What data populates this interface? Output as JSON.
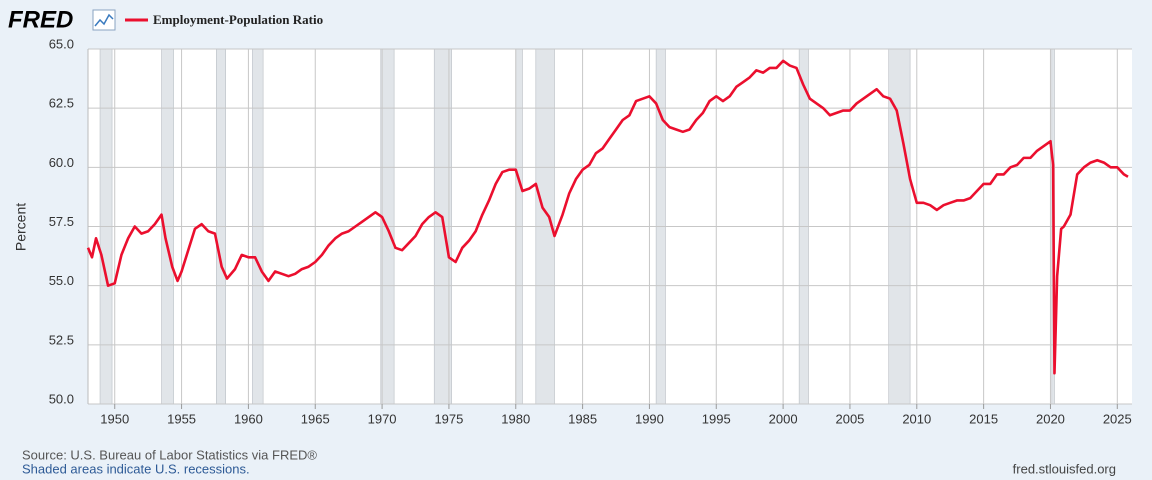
{
  "chart_data": {
    "type": "line",
    "logo": "FRED",
    "ylabel": "Percent",
    "source": "Source: U.S. Bureau of Labor Statistics via FRED®",
    "note": "Shaded areas indicate U.S. recessions.",
    "url": "fred.stlouisfed.org",
    "xlim": [
      1948,
      2026.1
    ],
    "xticks": [
      1950,
      1955,
      1960,
      1965,
      1970,
      1975,
      1980,
      1985,
      1990,
      1995,
      2000,
      2005,
      2010,
      2015,
      2020,
      2025
    ],
    "ylim": [
      50,
      65
    ],
    "yticks": [
      {
        "value": 50,
        "label": "50.0"
      },
      {
        "value": 52.5,
        "label": "52.5"
      },
      {
        "value": 55,
        "label": "55.0"
      },
      {
        "value": 57.5,
        "label": "57.5"
      },
      {
        "value": 60,
        "label": "60.0"
      },
      {
        "value": 62.5,
        "label": "62.5"
      },
      {
        "value": 65,
        "label": "65.0"
      }
    ],
    "grid": true,
    "recession_color": "#e1e5e9",
    "recessions": [
      [
        1948.9,
        1949.8
      ],
      [
        1953.5,
        1954.4
      ],
      [
        1957.6,
        1958.3
      ],
      [
        1960.3,
        1961.1
      ],
      [
        1969.9,
        1970.9
      ],
      [
        1973.9,
        1975.2
      ],
      [
        1980.0,
        1980.5
      ],
      [
        1981.5,
        1982.9
      ],
      [
        1990.5,
        1991.2
      ],
      [
        2001.2,
        2001.9
      ],
      [
        2007.9,
        2009.5
      ],
      [
        2020.1,
        2020.3
      ]
    ],
    "x": [
      1948.0,
      1948.3,
      1948.6,
      1949.0,
      1949.5,
      1950.0,
      1950.5,
      1951.0,
      1951.5,
      1952.0,
      1952.5,
      1953.0,
      1953.5,
      1953.8,
      1954.3,
      1954.7,
      1955.0,
      1955.5,
      1956.0,
      1956.5,
      1957.0,
      1957.5,
      1958.0,
      1958.4,
      1959.0,
      1959.5,
      1960.0,
      1960.5,
      1961.0,
      1961.5,
      1962.0,
      1962.5,
      1963.0,
      1963.5,
      1964.0,
      1964.5,
      1965.0,
      1965.5,
      1966.0,
      1966.5,
      1967.0,
      1967.5,
      1968.0,
      1968.5,
      1969.0,
      1969.5,
      1970.0,
      1970.5,
      1971.0,
      1971.5,
      1972.0,
      1972.5,
      1973.0,
      1973.5,
      1974.0,
      1974.5,
      1975.0,
      1975.5,
      1976.0,
      1976.5,
      1977.0,
      1977.5,
      1978.0,
      1978.5,
      1979.0,
      1979.5,
      1980.0,
      1980.5,
      1981.0,
      1981.5,
      1982.0,
      1982.5,
      1982.9,
      1983.5,
      1984.0,
      1984.5,
      1985.0,
      1985.5,
      1986.0,
      1986.5,
      1987.0,
      1987.5,
      1988.0,
      1988.5,
      1989.0,
      1989.5,
      1990.0,
      1990.5,
      1991.0,
      1991.5,
      1992.0,
      1992.5,
      1993.0,
      1993.5,
      1994.0,
      1994.5,
      1995.0,
      1995.5,
      1996.0,
      1996.5,
      1997.0,
      1997.5,
      1998.0,
      1998.5,
      1999.0,
      1999.5,
      2000.0,
      2000.5,
      2001.0,
      2001.5,
      2002.0,
      2002.5,
      2003.0,
      2003.5,
      2004.0,
      2004.5,
      2005.0,
      2005.5,
      2006.0,
      2006.5,
      2007.0,
      2007.5,
      2008.0,
      2008.5,
      2009.0,
      2009.5,
      2010.0,
      2010.5,
      2011.0,
      2011.5,
      2012.0,
      2012.5,
      2013.0,
      2013.5,
      2014.0,
      2014.5,
      2015.0,
      2015.5,
      2016.0,
      2016.5,
      2017.0,
      2017.5,
      2018.0,
      2018.5,
      2019.0,
      2019.5,
      2020.0,
      2020.2,
      2020.3,
      2020.5,
      2020.8,
      2021.0,
      2021.5,
      2022.0,
      2022.5,
      2023.0,
      2023.5,
      2024.0,
      2024.5,
      2025.0,
      2025.5,
      2025.8
    ],
    "series": [
      {
        "name": "Employment-Population Ratio",
        "color": "#eb0f2e",
        "values": [
          56.6,
          56.2,
          57.0,
          56.3,
          55.0,
          55.1,
          56.3,
          57.0,
          57.5,
          57.2,
          57.3,
          57.6,
          58.0,
          57.0,
          55.8,
          55.2,
          55.6,
          56.5,
          57.4,
          57.6,
          57.3,
          57.2,
          55.8,
          55.3,
          55.7,
          56.3,
          56.2,
          56.2,
          55.6,
          55.2,
          55.6,
          55.5,
          55.4,
          55.5,
          55.7,
          55.8,
          56.0,
          56.3,
          56.7,
          57.0,
          57.2,
          57.3,
          57.5,
          57.7,
          57.9,
          58.1,
          57.9,
          57.3,
          56.6,
          56.5,
          56.8,
          57.1,
          57.6,
          57.9,
          58.1,
          57.9,
          56.2,
          56.0,
          56.6,
          56.9,
          57.3,
          58.0,
          58.6,
          59.3,
          59.8,
          59.9,
          59.9,
          59.0,
          59.1,
          59.3,
          58.3,
          57.9,
          57.1,
          58.0,
          58.9,
          59.5,
          59.9,
          60.1,
          60.6,
          60.8,
          61.2,
          61.6,
          62.0,
          62.2,
          62.8,
          62.9,
          63.0,
          62.7,
          62.0,
          61.7,
          61.6,
          61.5,
          61.6,
          62.0,
          62.3,
          62.8,
          63.0,
          62.8,
          63.0,
          63.4,
          63.6,
          63.8,
          64.1,
          64.0,
          64.2,
          64.2,
          64.5,
          64.3,
          64.2,
          63.5,
          62.9,
          62.7,
          62.5,
          62.2,
          62.3,
          62.4,
          62.4,
          62.7,
          62.9,
          63.1,
          63.3,
          63.0,
          62.9,
          62.4,
          61.0,
          59.5,
          58.5,
          58.5,
          58.4,
          58.2,
          58.4,
          58.5,
          58.6,
          58.6,
          58.7,
          59.0,
          59.3,
          59.3,
          59.7,
          59.7,
          60.0,
          60.1,
          60.4,
          60.4,
          60.7,
          60.9,
          61.1,
          60.1,
          51.3,
          55.4,
          57.4,
          57.5,
          58.0,
          59.7,
          60.0,
          60.2,
          60.3,
          60.2,
          60.0,
          60.0,
          59.7,
          59.6
        ]
      }
    ]
  }
}
